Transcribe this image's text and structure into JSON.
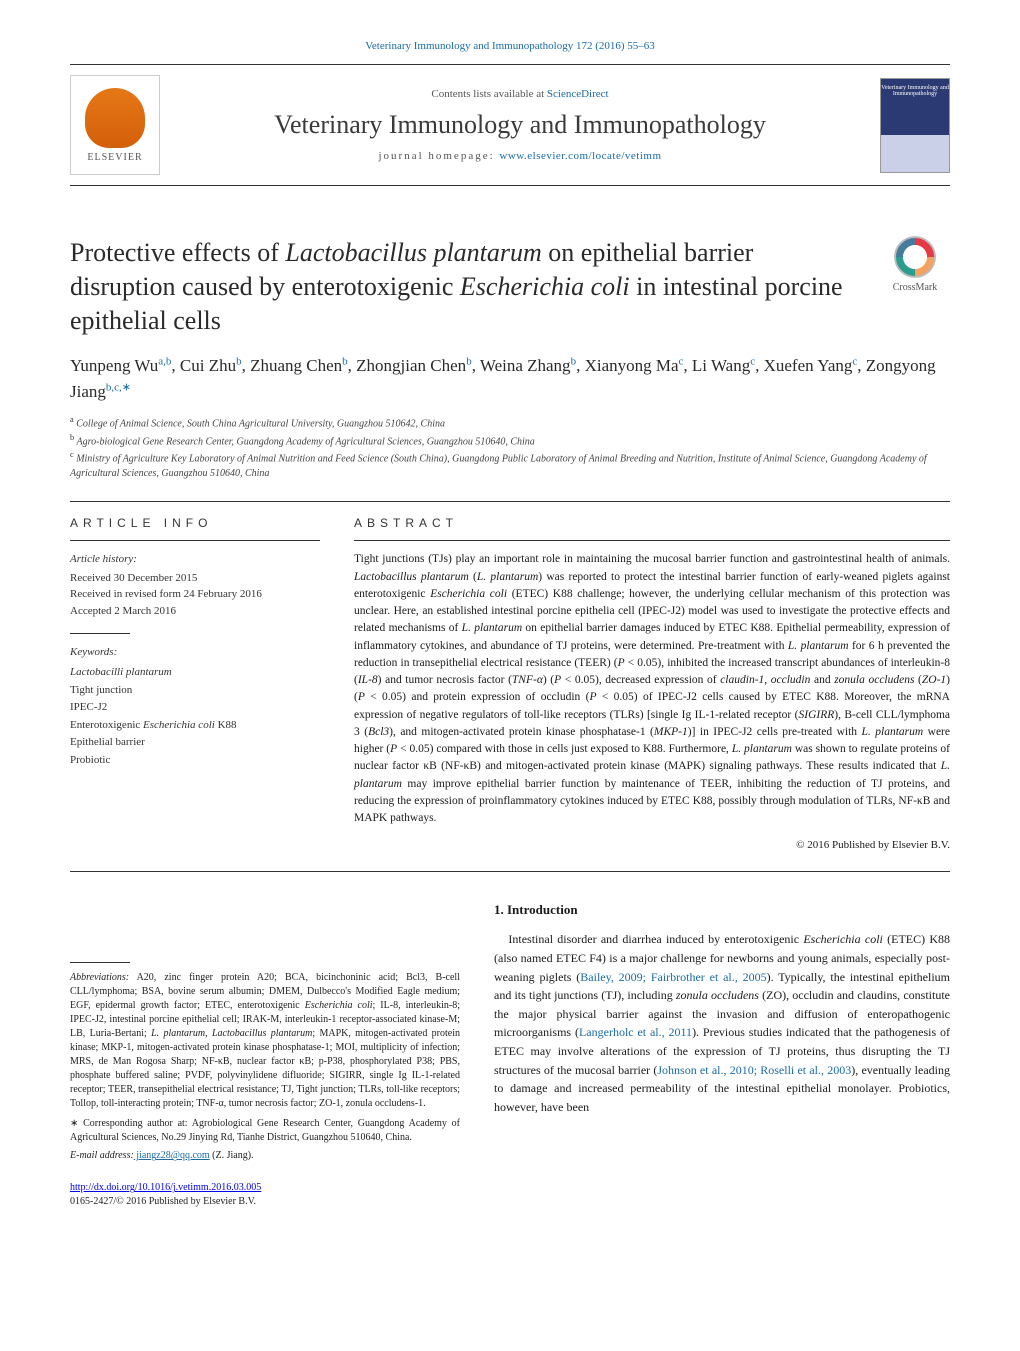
{
  "header": {
    "citation": "Veterinary Immunology and Immunopathology 172 (2016) 55–63",
    "contents_prefix": "Contents lists available at ",
    "contents_link": "ScienceDirect",
    "journal": "Veterinary Immunology and Immunopathology",
    "homepage_prefix": "journal homepage: ",
    "homepage_link": "www.elsevier.com/locate/vetimm",
    "publisher": "ELSEVIER",
    "cover_text": "Veterinary Immunology and Immunopathology"
  },
  "crossmark": "CrossMark",
  "title": {
    "pre": "Protective effects of ",
    "ital1": "Lactobacillus plantarum",
    "mid": " on epithelial barrier disruption caused by enterotoxigenic ",
    "ital2": "Escherichia coli",
    "post": " in intestinal porcine epithelial cells"
  },
  "authors_html": "Yunpeng Wu<sup>a,b</sup>, Cui Zhu<sup>b</sup>, Zhuang Chen<sup>b</sup>, Zhongjian Chen<sup>b</sup>, Weina Zhang<sup>b</sup>, Xianyong Ma<sup>c</sup>, Li Wang<sup>c</sup>, Xuefen Yang<sup>c</sup>, Zongyong Jiang<sup>b,c,∗</sup>",
  "affiliations": [
    {
      "sup": "a",
      "text": "College of Animal Science, South China Agricultural University, Guangzhou 510642, China"
    },
    {
      "sup": "b",
      "text": "Agro-biological Gene Research Center, Guangdong Academy of Agricultural Sciences, Guangzhou 510640, China"
    },
    {
      "sup": "c",
      "text": "Ministry of Agriculture Key Laboratory of Animal Nutrition and Feed Science (South China), Guangdong Public Laboratory of Animal Breeding and Nutrition, Institute of Animal Science, Guangdong Academy of Agricultural Sciences, Guangzhou 510640, China"
    }
  ],
  "info_label": "article info",
  "abstract_label": "abstract",
  "history": {
    "heading": "Article history:",
    "received": "Received 30 December 2015",
    "revised": "Received in revised form 24 February 2016",
    "accepted": "Accepted 2 March 2016"
  },
  "keywords": {
    "heading": "Keywords:",
    "items": [
      "<em>Lactobacilli plantarum</em>",
      "Tight junction",
      "IPEC-J2",
      "Enterotoxigenic <em>Escherichia coli</em> K88",
      "Epithelial barrier",
      "Probiotic"
    ]
  },
  "abstract_html": "Tight junctions (TJs) play an important role in maintaining the mucosal barrier function and gastrointestinal health of animals. <em>Lactobacillus plantarum</em> (<em>L. plantarum</em>) was reported to protect the intestinal barrier function of early-weaned piglets against enterotoxigenic <em>Escherichia coli</em> (ETEC) K88 challenge; however, the underlying cellular mechanism of this protection was unclear. Here, an established intestinal porcine epithelia cell (IPEC-J2) model was used to investigate the protective effects and related mechanisms of <em>L. plantarum</em> on epithelial barrier damages induced by ETEC K88. Epithelial permeability, expression of inflammatory cytokines, and abundance of TJ proteins, were determined. Pre-treatment with <em>L. plantarum</em> for 6 h prevented the reduction in transepithelial electrical resistance (TEER) (<em>P</em> &lt; 0.05), inhibited the increased transcript abundances of interleukin-8 (<em>IL-8</em>) and tumor necrosis factor (<em>TNF-α</em>) (<em>P</em> &lt; 0.05), decreased expression of <em>claudin-1</em>, <em>occludin</em> and <em>zonula occludens</em> (<em>ZO-1</em>) (<em>P</em> &lt; 0.05) and protein expression of occludin (<em>P</em> &lt; 0.05) of IPEC-J2 cells caused by ETEC K88. Moreover, the mRNA expression of negative regulators of toll-like receptors (TLRs) [single Ig IL-1-related receptor (<em>SIGIRR</em>), B-cell CLL/lymphoma 3 (<em>Bcl3</em>), and mitogen-activated protein kinase phosphatase-1 (<em>MKP-1</em>)] in IPEC-J2 cells pre-treated with <em>L. plantarum</em> were higher (<em>P</em> &lt; 0.05) compared with those in cells just exposed to K88. Furthermore, <em>L. plantarum</em> was shown to regulate proteins of nuclear factor κB (NF-κB) and mitogen-activated protein kinase (MAPK) signaling pathways. These results indicated that <em>L. plantarum</em> may improve epithelial barrier function by maintenance of TEER, inhibiting the reduction of TJ proteins, and reducing the expression of proinflammatory cytokines induced by ETEC K88, possibly through modulation of TLRs, NF-κB and MAPK pathways.",
  "copyright": "© 2016 Published by Elsevier B.V.",
  "intro": {
    "heading": "1. Introduction",
    "body_html": "Intestinal disorder and diarrhea induced by enterotoxigenic <em>Escherichia coli</em> (ETEC) K88 (also named ETEC F4) is a major challenge for newborns and young animals, especially post-weaning piglets (<span class='cite'>Bailey, 2009; Fairbrother et al., 2005</span>). Typically, the intestinal epithelium and its tight junctions (TJ), including <em>zonula occludens</em> (ZO), occludin and claudins, constitute the major physical barrier against the invasion and diffusion of enteropathogenic microorganisms (<span class='cite'>Langerholc et al., 2011</span>). Previous studies indicated that the pathogenesis of ETEC may involve alterations of the expression of TJ proteins, thus disrupting the TJ structures of the mucosal barrier (<span class='cite'>Johnson et al., 2010; Roselli et al., 2003</span>), eventually leading to damage and increased permeability of the intestinal epithelial monolayer. Probiotics, however, have been"
  },
  "footnotes": {
    "abbrev_label": "Abbreviations:",
    "abbrev_text": " A20, zinc finger protein A20; BCA, bicinchoninic acid; Bcl3, B-cell CLL/lymphoma; BSA, bovine serum albumin; DMEM, Dulbecco's Modified Eagle medium; EGF, epidermal growth factor; ETEC, enterotoxigenic <em>Escherichia coli</em>; IL-8, interleukin-8; IPEC-J2, intestinal porcine epithelial cell; IRAK-M, interleukin-1 receptor-associated kinase-M; LB, Luria-Bertani; <em>L. plantarum</em>, <em>Lactobacillus plantarum</em>; MAPK, mitogen-activated protein kinase; MKP-1, mitogen-activated protein kinase phosphatase-1; MOI, multiplicity of infection; MRS, de Man Rogosa Sharp; NF-κB, nuclear factor κB; p-P38, phosphorylated P38; PBS, phosphate buffered saline; PVDF, polyvinylidene difluoride; SIGIRR, single Ig IL-1-related receptor; TEER, transepithelial electrical resistance; TJ, Tight junction; TLRs, toll-like receptors; Tollop, toll-interacting protein; TNF-α, tumor necrosis factor; ZO-1, zonula occludens-1.",
    "corr_label": "∗",
    "corr_text": " Corresponding author at: Agrobiological Gene Research Center, Guangdong Academy of Agricultural Sciences, No.29 Jinying Rd, Tianhe District, Guangzhou 510640, China.",
    "email_label": "E-mail address:",
    "email": " jiangz28@qq.com",
    "email_suffix": " (Z. Jiang)."
  },
  "footer": {
    "doi": "http://dx.doi.org/10.1016/j.vetimm.2016.03.005",
    "issn_line": "0165-2427/© 2016 Published by Elsevier B.V."
  },
  "colors": {
    "link": "#1a6ba8",
    "text": "#1a1a1a",
    "rule": "#333333"
  }
}
